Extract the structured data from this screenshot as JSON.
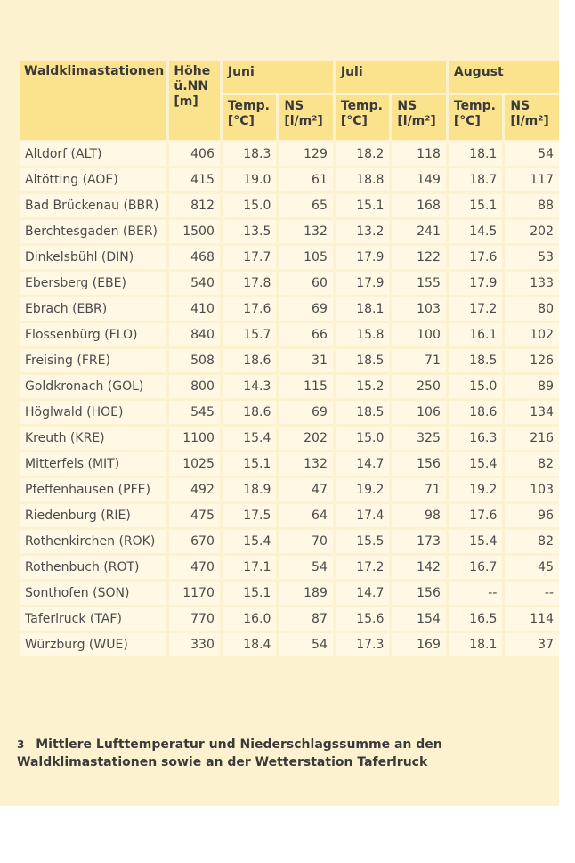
{
  "table": {
    "header": {
      "station": "Waldklimastationen",
      "height": "Höhe ü.NN [m]",
      "months": [
        "Juni",
        "Juli",
        "August"
      ],
      "temp": "Temp. [°C]",
      "ns": "NS [l/m²]"
    },
    "rows": [
      {
        "station": "Altdorf (ALT)",
        "height": "406",
        "jun_t": "18.3",
        "jun_ns": "129",
        "jul_t": "18.2",
        "jul_ns": "118",
        "aug_t": "18.1",
        "aug_ns": "54"
      },
      {
        "station": "Altötting (AOE)",
        "height": "415",
        "jun_t": "19.0",
        "jun_ns": "61",
        "jul_t": "18.8",
        "jul_ns": "149",
        "aug_t": "18.7",
        "aug_ns": "117"
      },
      {
        "station": "Bad Brückenau (BBR)",
        "height": "812",
        "jun_t": "15.0",
        "jun_ns": "65",
        "jul_t": "15.1",
        "jul_ns": "168",
        "aug_t": "15.1",
        "aug_ns": "88"
      },
      {
        "station": "Berchtesgaden (BER)",
        "height": "1500",
        "jun_t": "13.5",
        "jun_ns": "132",
        "jul_t": "13.2",
        "jul_ns": "241",
        "aug_t": "14.5",
        "aug_ns": "202"
      },
      {
        "station": "Dinkelsbühl (DIN)",
        "height": "468",
        "jun_t": "17.7",
        "jun_ns": "105",
        "jul_t": "17.9",
        "jul_ns": "122",
        "aug_t": "17.6",
        "aug_ns": "53"
      },
      {
        "station": "Ebersberg (EBE)",
        "height": "540",
        "jun_t": "17.8",
        "jun_ns": "60",
        "jul_t": "17.9",
        "jul_ns": "155",
        "aug_t": "17.9",
        "aug_ns": "133"
      },
      {
        "station": "Ebrach (EBR)",
        "height": "410",
        "jun_t": "17.6",
        "jun_ns": "69",
        "jul_t": "18.1",
        "jul_ns": "103",
        "aug_t": "17.2",
        "aug_ns": "80"
      },
      {
        "station": "Flossenbürg (FLO)",
        "height": "840",
        "jun_t": "15.7",
        "jun_ns": "66",
        "jul_t": "15.8",
        "jul_ns": "100",
        "aug_t": "16.1",
        "aug_ns": "102"
      },
      {
        "station": "Freising (FRE)",
        "height": "508",
        "jun_t": "18.6",
        "jun_ns": "31",
        "jul_t": "18.5",
        "jul_ns": "71",
        "aug_t": "18.5",
        "aug_ns": "126"
      },
      {
        "station": "Goldkronach (GOL)",
        "height": "800",
        "jun_t": "14.3",
        "jun_ns": "115",
        "jul_t": "15.2",
        "jul_ns": "250",
        "aug_t": "15.0",
        "aug_ns": "89"
      },
      {
        "station": "Höglwald (HOE)",
        "height": "545",
        "jun_t": "18.6",
        "jun_ns": "69",
        "jul_t": "18.5",
        "jul_ns": "106",
        "aug_t": "18.6",
        "aug_ns": "134"
      },
      {
        "station": "Kreuth (KRE)",
        "height": "1100",
        "jun_t": "15.4",
        "jun_ns": "202",
        "jul_t": "15.0",
        "jul_ns": "325",
        "aug_t": "16.3",
        "aug_ns": "216"
      },
      {
        "station": "Mitterfels (MIT)",
        "height": "1025",
        "jun_t": "15.1",
        "jun_ns": "132",
        "jul_t": "14.7",
        "jul_ns": "156",
        "aug_t": "15.4",
        "aug_ns": "82"
      },
      {
        "station": "Pfeffenhausen (PFE)",
        "height": "492",
        "jun_t": "18.9",
        "jun_ns": "47",
        "jul_t": "19.2",
        "jul_ns": "71",
        "aug_t": "19.2",
        "aug_ns": "103"
      },
      {
        "station": "Riedenburg (RIE)",
        "height": "475",
        "jun_t": "17.5",
        "jun_ns": "64",
        "jul_t": "17.4",
        "jul_ns": "98",
        "aug_t": "17.6",
        "aug_ns": "96"
      },
      {
        "station": "Rothenkirchen (ROK)",
        "height": "670",
        "jun_t": "15.4",
        "jun_ns": "70",
        "jul_t": "15.5",
        "jul_ns": "173",
        "aug_t": "15.4",
        "aug_ns": "82"
      },
      {
        "station": "Rothenbuch (ROT)",
        "height": "470",
        "jun_t": "17.1",
        "jun_ns": "54",
        "jul_t": "17.2",
        "jul_ns": "142",
        "aug_t": "16.7",
        "aug_ns": "45"
      },
      {
        "station": "Sonthofen (SON)",
        "height": "1170",
        "jun_t": "15.1",
        "jun_ns": "189",
        "jul_t": "14.7",
        "jul_ns": "156",
        "aug_t": "--",
        "aug_ns": "--"
      },
      {
        "station": "Taferlruck (TAF)",
        "height": "770",
        "jun_t": "16.0",
        "jun_ns": "87",
        "jul_t": "15.6",
        "jul_ns": "154",
        "aug_t": "16.5",
        "aug_ns": "114"
      },
      {
        "station": "Würzburg (WUE)",
        "height": "330",
        "jun_t": "18.4",
        "jun_ns": "54",
        "jul_t": "17.3",
        "jul_ns": "169",
        "aug_t": "18.1",
        "aug_ns": "37"
      }
    ]
  },
  "caption": {
    "number": "3",
    "text": "Mittlere Lufttemperatur und Niederschlagssumme an den Waldklimastationen sowie an der Wetterstation Taferlruck"
  },
  "colors": {
    "panel": "#fdf2cf",
    "header": "#fbe28d",
    "cell": "#fff8e4"
  }
}
